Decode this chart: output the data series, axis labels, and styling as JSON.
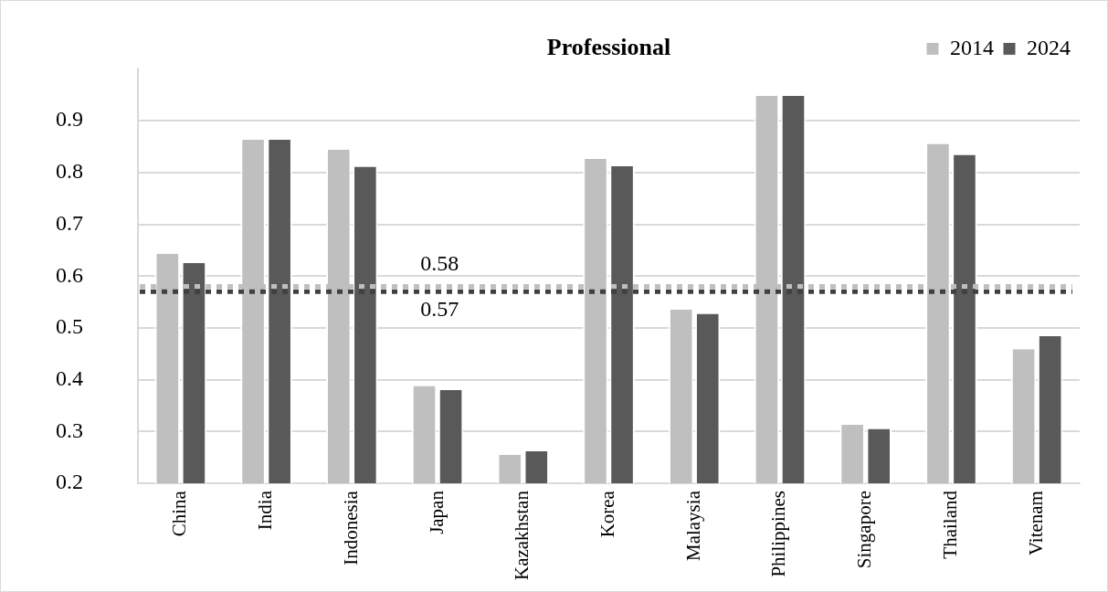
{
  "chart_data": {
    "type": "bar",
    "title": "Professional",
    "categories": [
      "China",
      "India",
      "Indonesia",
      "Japan",
      "Kazakhstan",
      "Korea",
      "Malaysia",
      "Philippines",
      "Singapore",
      "Thailand",
      "Vitenam"
    ],
    "series": [
      {
        "name": "2014",
        "color": "#bfbfbf",
        "values": [
          0.643,
          0.863,
          0.844,
          0.388,
          0.255,
          0.826,
          0.535,
          0.948,
          0.313,
          0.855,
          0.459
        ]
      },
      {
        "name": "2024",
        "color": "#595959",
        "values": [
          0.625,
          0.863,
          0.811,
          0.38,
          0.262,
          0.812,
          0.527,
          0.948,
          0.305,
          0.834,
          0.484
        ]
      }
    ],
    "ylim": [
      0.2,
      1
    ],
    "yticks": [
      0.2,
      0.3,
      0.4,
      0.5,
      0.6,
      0.7,
      0.8,
      0.9
    ],
    "ref_lines": [
      {
        "axis": "y",
        "value": 0.58,
        "label": "0.58",
        "color": "#bfbfbf",
        "line_style": "dotted"
      },
      {
        "axis": "y",
        "value": 0.57,
        "label": "0.57",
        "color": "#404040",
        "line_style": "dotted"
      }
    ],
    "grid": "y",
    "legend": "top right"
  }
}
